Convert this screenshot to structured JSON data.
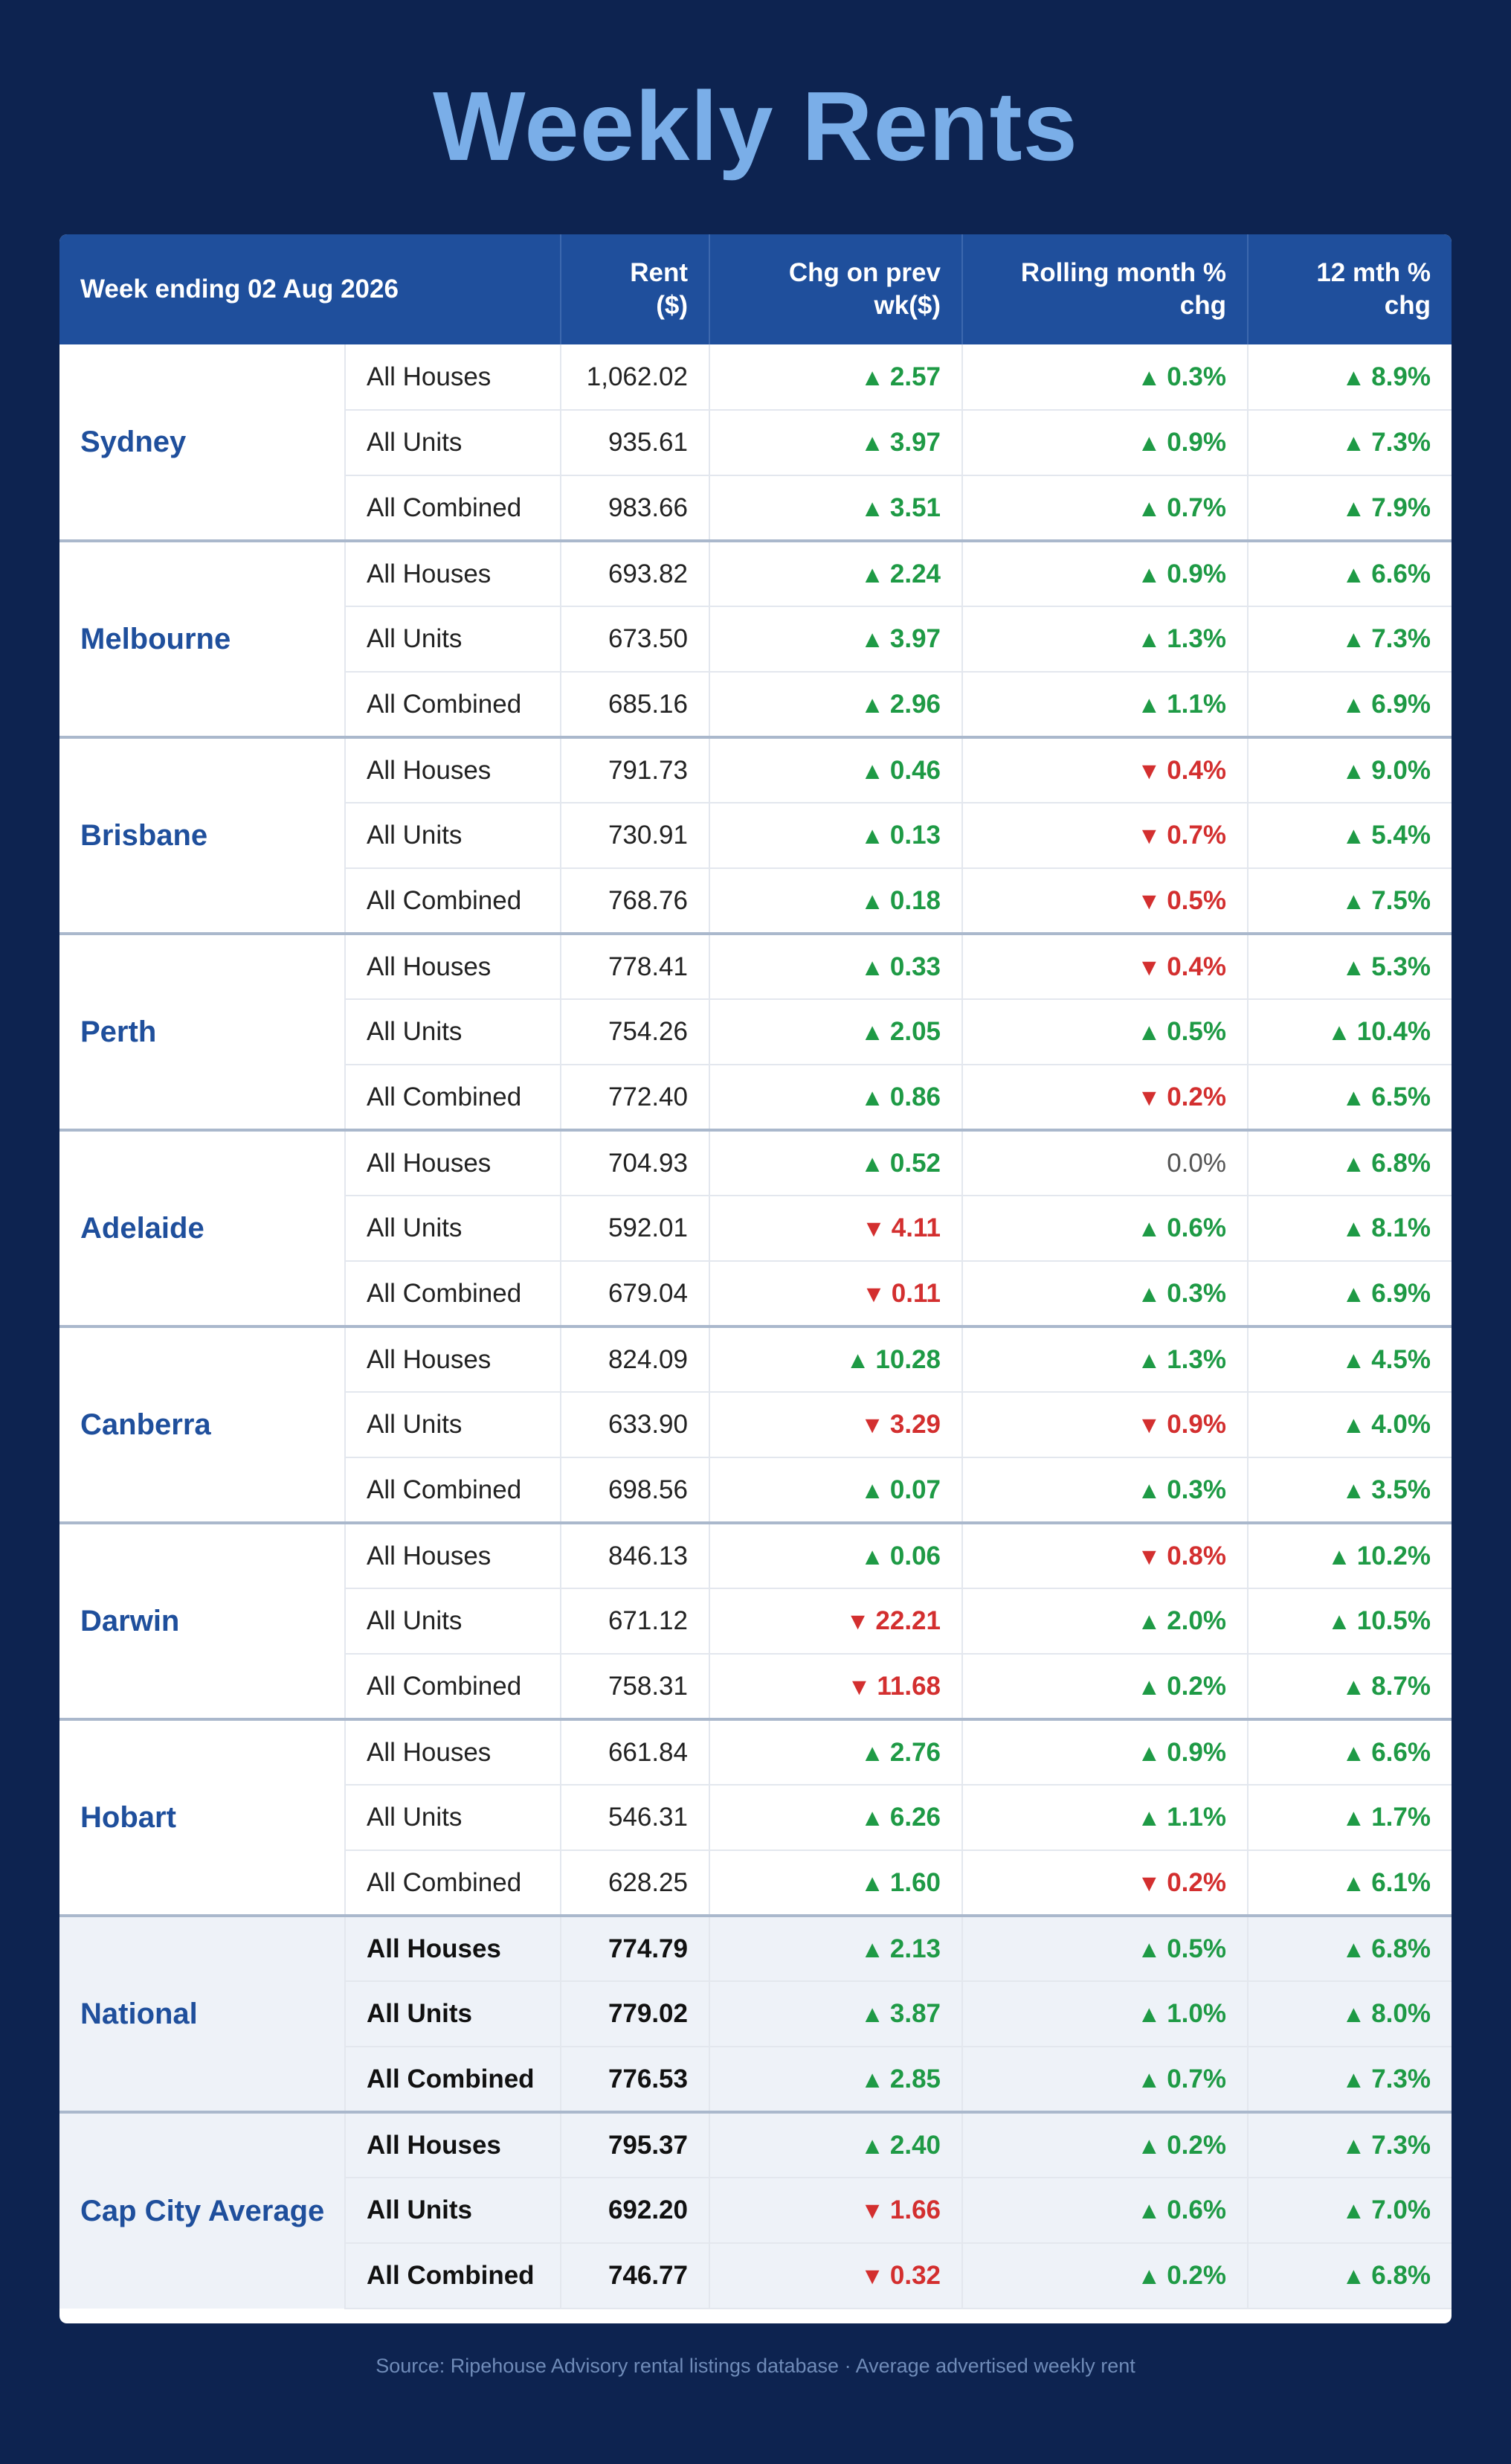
{
  "title": "Weekly Rents",
  "header": {
    "week_label": "Week ending 02 Aug 2026",
    "rent_label_1": "Rent",
    "rent_label_2": "($)",
    "chg_label_1": "Chg on prev",
    "chg_label_2": "wk($)",
    "roll_label_1": "Rolling month %",
    "roll_label_2": "chg",
    "yr_label_1": "12 mth %",
    "yr_label_2": "chg"
  },
  "colors": {
    "up": "#1e9a45",
    "down": "#d32f2f",
    "flat": "#555555",
    "header_bg": "#1f4f9c",
    "page_bg": "#0d2350",
    "title": "#7aaee8"
  },
  "cities": [
    {
      "name": "Sydney",
      "rows": [
        {
          "type": "All Houses",
          "rent": "1,062.02",
          "chg": {
            "dir": "up",
            "val": "2.57"
          },
          "roll": {
            "dir": "up",
            "val": "0.3%"
          },
          "yr": {
            "dir": "up",
            "val": "8.9%"
          }
        },
        {
          "type": "All Units",
          "rent": "935.61",
          "chg": {
            "dir": "up",
            "val": "3.97"
          },
          "roll": {
            "dir": "up",
            "val": "0.9%"
          },
          "yr": {
            "dir": "up",
            "val": "7.3%"
          }
        },
        {
          "type": "All Combined",
          "rent": "983.66",
          "chg": {
            "dir": "up",
            "val": "3.51"
          },
          "roll": {
            "dir": "up",
            "val": "0.7%"
          },
          "yr": {
            "dir": "up",
            "val": "7.9%"
          }
        }
      ]
    },
    {
      "name": "Melbourne",
      "rows": [
        {
          "type": "All Houses",
          "rent": "693.82",
          "chg": {
            "dir": "up",
            "val": "2.24"
          },
          "roll": {
            "dir": "up",
            "val": "0.9%"
          },
          "yr": {
            "dir": "up",
            "val": "6.6%"
          }
        },
        {
          "type": "All Units",
          "rent": "673.50",
          "chg": {
            "dir": "up",
            "val": "3.97"
          },
          "roll": {
            "dir": "up",
            "val": "1.3%"
          },
          "yr": {
            "dir": "up",
            "val": "7.3%"
          }
        },
        {
          "type": "All Combined",
          "rent": "685.16",
          "chg": {
            "dir": "up",
            "val": "2.96"
          },
          "roll": {
            "dir": "up",
            "val": "1.1%"
          },
          "yr": {
            "dir": "up",
            "val": "6.9%"
          }
        }
      ]
    },
    {
      "name": "Brisbane",
      "rows": [
        {
          "type": "All Houses",
          "rent": "791.73",
          "chg": {
            "dir": "up",
            "val": "0.46"
          },
          "roll": {
            "dir": "down",
            "val": "0.4%"
          },
          "yr": {
            "dir": "up",
            "val": "9.0%"
          }
        },
        {
          "type": "All Units",
          "rent": "730.91",
          "chg": {
            "dir": "up",
            "val": "0.13"
          },
          "roll": {
            "dir": "down",
            "val": "0.7%"
          },
          "yr": {
            "dir": "up",
            "val": "5.4%"
          }
        },
        {
          "type": "All Combined",
          "rent": "768.76",
          "chg": {
            "dir": "up",
            "val": "0.18"
          },
          "roll": {
            "dir": "down",
            "val": "0.5%"
          },
          "yr": {
            "dir": "up",
            "val": "7.5%"
          }
        }
      ]
    },
    {
      "name": "Perth",
      "rows": [
        {
          "type": "All Houses",
          "rent": "778.41",
          "chg": {
            "dir": "up",
            "val": "0.33"
          },
          "roll": {
            "dir": "down",
            "val": "0.4%"
          },
          "yr": {
            "dir": "up",
            "val": "5.3%"
          }
        },
        {
          "type": "All Units",
          "rent": "754.26",
          "chg": {
            "dir": "up",
            "val": "2.05"
          },
          "roll": {
            "dir": "up",
            "val": "0.5%"
          },
          "yr": {
            "dir": "up",
            "val": "10.4%"
          }
        },
        {
          "type": "All Combined",
          "rent": "772.40",
          "chg": {
            "dir": "up",
            "val": "0.86"
          },
          "roll": {
            "dir": "down",
            "val": "0.2%"
          },
          "yr": {
            "dir": "up",
            "val": "6.5%"
          }
        }
      ]
    },
    {
      "name": "Adelaide",
      "rows": [
        {
          "type": "All Houses",
          "rent": "704.93",
          "chg": {
            "dir": "up",
            "val": "0.52"
          },
          "roll": {
            "dir": "flat",
            "val": "0.0%"
          },
          "yr": {
            "dir": "up",
            "val": "6.8%"
          }
        },
        {
          "type": "All Units",
          "rent": "592.01",
          "chg": {
            "dir": "down",
            "val": "4.11"
          },
          "roll": {
            "dir": "up",
            "val": "0.6%"
          },
          "yr": {
            "dir": "up",
            "val": "8.1%"
          }
        },
        {
          "type": "All Combined",
          "rent": "679.04",
          "chg": {
            "dir": "down",
            "val": "0.11"
          },
          "roll": {
            "dir": "up",
            "val": "0.3%"
          },
          "yr": {
            "dir": "up",
            "val": "6.9%"
          }
        }
      ]
    },
    {
      "name": "Canberra",
      "rows": [
        {
          "type": "All Houses",
          "rent": "824.09",
          "chg": {
            "dir": "up",
            "val": "10.28"
          },
          "roll": {
            "dir": "up",
            "val": "1.3%"
          },
          "yr": {
            "dir": "up",
            "val": "4.5%"
          }
        },
        {
          "type": "All Units",
          "rent": "633.90",
          "chg": {
            "dir": "down",
            "val": "3.29"
          },
          "roll": {
            "dir": "down",
            "val": "0.9%"
          },
          "yr": {
            "dir": "up",
            "val": "4.0%"
          }
        },
        {
          "type": "All Combined",
          "rent": "698.56",
          "chg": {
            "dir": "up",
            "val": "0.07"
          },
          "roll": {
            "dir": "up",
            "val": "0.3%"
          },
          "yr": {
            "dir": "up",
            "val": "3.5%"
          }
        }
      ]
    },
    {
      "name": "Darwin",
      "rows": [
        {
          "type": "All Houses",
          "rent": "846.13",
          "chg": {
            "dir": "up",
            "val": "0.06"
          },
          "roll": {
            "dir": "down",
            "val": "0.8%"
          },
          "yr": {
            "dir": "up",
            "val": "10.2%"
          }
        },
        {
          "type": "All Units",
          "rent": "671.12",
          "chg": {
            "dir": "down",
            "val": "22.21"
          },
          "roll": {
            "dir": "up",
            "val": "2.0%"
          },
          "yr": {
            "dir": "up",
            "val": "10.5%"
          }
        },
        {
          "type": "All Combined",
          "rent": "758.31",
          "chg": {
            "dir": "down",
            "val": "11.68"
          },
          "roll": {
            "dir": "up",
            "val": "0.2%"
          },
          "yr": {
            "dir": "up",
            "val": "8.7%"
          }
        }
      ]
    },
    {
      "name": "Hobart",
      "rows": [
        {
          "type": "All Houses",
          "rent": "661.84",
          "chg": {
            "dir": "up",
            "val": "2.76"
          },
          "roll": {
            "dir": "up",
            "val": "0.9%"
          },
          "yr": {
            "dir": "up",
            "val": "6.6%"
          }
        },
        {
          "type": "All Units",
          "rent": "546.31",
          "chg": {
            "dir": "up",
            "val": "6.26"
          },
          "roll": {
            "dir": "up",
            "val": "1.1%"
          },
          "yr": {
            "dir": "up",
            "val": "1.7%"
          }
        },
        {
          "type": "All Combined",
          "rent": "628.25",
          "chg": {
            "dir": "up",
            "val": "1.60"
          },
          "roll": {
            "dir": "down",
            "val": "0.2%"
          },
          "yr": {
            "dir": "up",
            "val": "6.1%"
          }
        }
      ]
    }
  ],
  "summaries": [
    {
      "name": "National",
      "rows": [
        {
          "type": "All Houses",
          "rent": "774.79",
          "chg": {
            "dir": "up",
            "val": "2.13"
          },
          "roll": {
            "dir": "up",
            "val": "0.5%"
          },
          "yr": {
            "dir": "up",
            "val": "6.8%"
          }
        },
        {
          "type": "All Units",
          "rent": "779.02",
          "chg": {
            "dir": "up",
            "val": "3.87"
          },
          "roll": {
            "dir": "up",
            "val": "1.0%"
          },
          "yr": {
            "dir": "up",
            "val": "8.0%"
          }
        },
        {
          "type": "All Combined",
          "rent": "776.53",
          "chg": {
            "dir": "up",
            "val": "2.85"
          },
          "roll": {
            "dir": "up",
            "val": "0.7%"
          },
          "yr": {
            "dir": "up",
            "val": "7.3%"
          }
        }
      ]
    },
    {
      "name": "Cap City Average",
      "rows": [
        {
          "type": "All Houses",
          "rent": "795.37",
          "chg": {
            "dir": "up",
            "val": "2.40"
          },
          "roll": {
            "dir": "up",
            "val": "0.2%"
          },
          "yr": {
            "dir": "up",
            "val": "7.3%"
          }
        },
        {
          "type": "All Units",
          "rent": "692.20",
          "chg": {
            "dir": "down",
            "val": "1.66"
          },
          "roll": {
            "dir": "up",
            "val": "0.6%"
          },
          "yr": {
            "dir": "up",
            "val": "7.0%"
          }
        },
        {
          "type": "All Combined",
          "rent": "746.77",
          "chg": {
            "dir": "down",
            "val": "0.32"
          },
          "roll": {
            "dir": "up",
            "val": "0.2%"
          },
          "yr": {
            "dir": "up",
            "val": "6.8%"
          }
        }
      ]
    }
  ],
  "source": "Source: Ripehouse Advisory rental listings database · Average advertised weekly rent"
}
